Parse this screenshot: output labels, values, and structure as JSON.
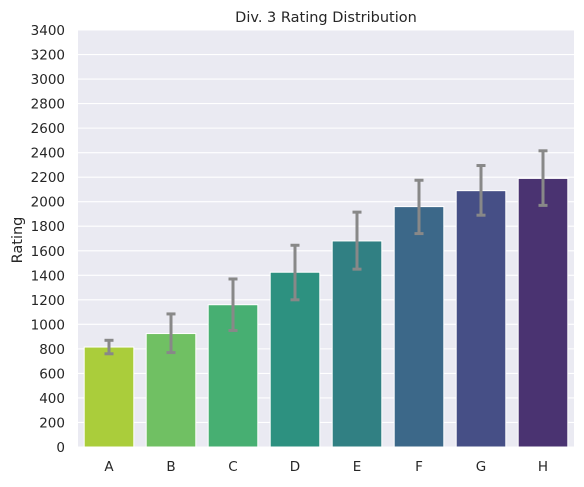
{
  "chart_data": {
    "type": "bar",
    "title": "Div. 3 Rating Distribution",
    "xlabel": "",
    "ylabel": "Rating",
    "ylim": [
      0,
      3400
    ],
    "yticks": [
      0,
      200,
      400,
      600,
      800,
      1000,
      1200,
      1400,
      1600,
      1800,
      2000,
      2200,
      2400,
      2600,
      2800,
      3000,
      3200,
      3400
    ],
    "grid": true,
    "legend": "none",
    "categories": [
      "A",
      "B",
      "C",
      "D",
      "E",
      "F",
      "G",
      "H"
    ],
    "values": [
      815,
      925,
      1160,
      1425,
      1680,
      1960,
      2090,
      2190
    ],
    "error_low": [
      760,
      770,
      950,
      1200,
      1450,
      1740,
      1890,
      1970
    ],
    "error_high": [
      870,
      1085,
      1370,
      1645,
      1915,
      2175,
      2295,
      2415
    ],
    "colors": [
      "#aacd3b",
      "#70c063",
      "#47af72",
      "#2d9180",
      "#318083",
      "#3c6889",
      "#464f86",
      "#4a3371"
    ],
    "background_color": "#eaeaf2",
    "grid_color": "#ffffff",
    "error_bar_color": "#888888"
  }
}
